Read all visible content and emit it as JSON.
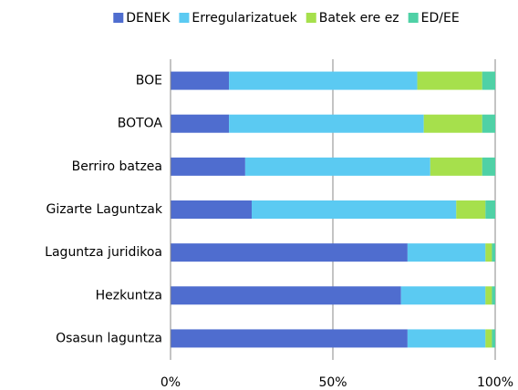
{
  "chart_data": {
    "type": "stacked_bar_horizontal",
    "categories": [
      "BOE",
      "BOTOA",
      "Berriro batzea",
      "Gizarte Laguntzak",
      "Laguntza juridikoa",
      "Hezkuntza",
      "Osasun laguntza"
    ],
    "series": [
      {
        "name": "DENEK",
        "color": "#4f6dcf",
        "values": [
          18,
          18,
          23,
          25,
          73,
          71,
          73
        ]
      },
      {
        "name": "Erregularizatuek",
        "color": "#5bcaf2",
        "values": [
          58,
          60,
          57,
          63,
          24,
          26,
          24
        ]
      },
      {
        "name": "Batek ere ez",
        "color": "#a6e04c",
        "values": [
          20,
          18,
          16,
          9,
          2,
          2,
          2
        ]
      },
      {
        "name": "ED/EE",
        "color": "#4fd1a6",
        "values": [
          4,
          4,
          4,
          3,
          1,
          1,
          1
        ]
      }
    ],
    "xlim": [
      0,
      100
    ],
    "xticks": [
      {
        "value": 0,
        "label": "0%"
      },
      {
        "value": 50,
        "label": "50%"
      },
      {
        "value": 100,
        "label": "100%"
      }
    ],
    "grid": true,
    "legend": "top"
  }
}
